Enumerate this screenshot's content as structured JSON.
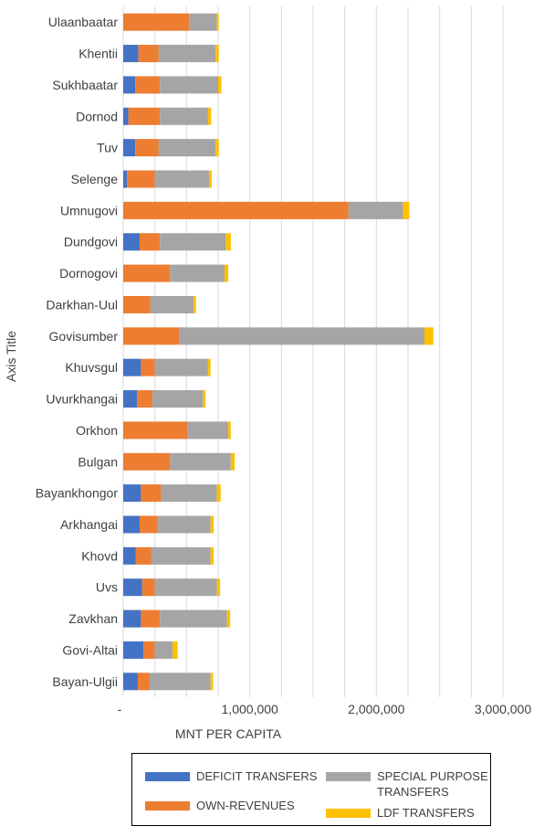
{
  "chart_data": {
    "type": "bar",
    "orientation": "horizontal",
    "stacked": true,
    "xlabel": "MNT PER CAPITA",
    "ylabel": "Axis Title",
    "xlim": [
      0,
      3000000
    ],
    "xticks": [
      "-",
      "1,000,000",
      "2,000,000",
      "3,000,000"
    ],
    "grid": true,
    "legend_position": "bottom",
    "categories": [
      "Ulaanbaatar",
      "Khentii",
      "Sukhbaatar",
      "Dornod",
      "Tuv",
      "Selenge",
      "Umnugovi",
      "Dundgovi",
      "Dornogovi",
      "Darkhan-Uul",
      "Govisumber",
      "Khuvsgul",
      "Uvurkhangai",
      "Orkhon",
      "Bulgan",
      "Bayankhongor",
      "Arkhangai",
      "Khovd",
      "Uvs",
      "Zavkhan",
      "Govi-Altai",
      "Bayan-Ulgii"
    ],
    "series": [
      {
        "name": "DEFICIT TRANSFERS",
        "color": "#4472C4",
        "values": [
          0,
          120000,
          95000,
          40000,
          95000,
          30000,
          0,
          130000,
          0,
          0,
          0,
          140000,
          110000,
          0,
          0,
          140000,
          130000,
          100000,
          150000,
          140000,
          160000,
          115000
        ]
      },
      {
        "name": "OWN-REVENUES",
        "color": "#ED7D31",
        "values": [
          520000,
          160000,
          195000,
          250000,
          185000,
          220000,
          1780000,
          160000,
          370000,
          215000,
          440000,
          110000,
          120000,
          510000,
          370000,
          160000,
          140000,
          120000,
          100000,
          150000,
          90000,
          95000
        ]
      },
      {
        "name": "SPECIAL PURPOSE TRANSFERS",
        "color": "#A5A5A5",
        "values": [
          220000,
          450000,
          460000,
          380000,
          450000,
          430000,
          430000,
          520000,
          430000,
          340000,
          1940000,
          420000,
          400000,
          320000,
          480000,
          440000,
          420000,
          470000,
          490000,
          530000,
          140000,
          480000
        ]
      },
      {
        "name": "LDF TRANSFERS",
        "color": "#FFC000",
        "values": [
          15000,
          25000,
          25000,
          25000,
          25000,
          20000,
          50000,
          40000,
          30000,
          20000,
          70000,
          20000,
          20000,
          20000,
          30000,
          30000,
          25000,
          25000,
          25000,
          25000,
          40000,
          20000
        ]
      }
    ]
  },
  "legend": {
    "items": [
      {
        "label": "DEFICIT TRANSFERS",
        "color": "#4472C4"
      },
      {
        "label": "OWN-REVENUES",
        "color": "#ED7D31"
      },
      {
        "label": "SPECIAL PURPOSE TRANSFERS",
        "color": "#A5A5A5"
      },
      {
        "label": "LDF TRANSFERS",
        "color": "#FFC000"
      }
    ]
  }
}
